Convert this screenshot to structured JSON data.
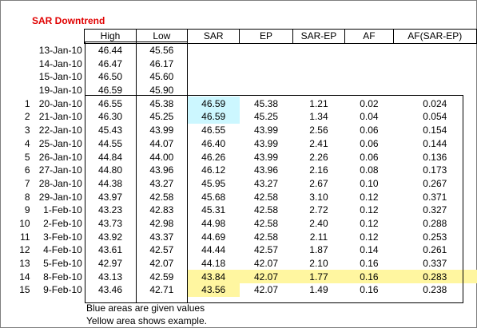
{
  "title": "SAR Downtrend",
  "headers": [
    "High",
    "Low",
    "SAR",
    "EP",
    "SAR-EP",
    "AF",
    "AF(SAR-EP)"
  ],
  "pre_rows": [
    {
      "date": "13-Jan-10",
      "high": "46.44",
      "low": "45.56"
    },
    {
      "date": "14-Jan-10",
      "high": "46.47",
      "low": "46.17"
    },
    {
      "date": "15-Jan-10",
      "high": "46.50",
      "low": "45.60"
    },
    {
      "date": "19-Jan-10",
      "high": "46.59",
      "low": "45.90"
    }
  ],
  "rows": [
    {
      "n": "1",
      "date": "20-Jan-10",
      "high": "46.55",
      "low": "45.38",
      "sar": "46.59",
      "ep": "45.38",
      "sep": "1.21",
      "af": "0.02",
      "afs": "0.024"
    },
    {
      "n": "2",
      "date": "21-Jan-10",
      "high": "46.30",
      "low": "45.25",
      "sar": "46.59",
      "ep": "45.25",
      "sep": "1.34",
      "af": "0.04",
      "afs": "0.054"
    },
    {
      "n": "3",
      "date": "22-Jan-10",
      "high": "45.43",
      "low": "43.99",
      "sar": "46.55",
      "ep": "43.99",
      "sep": "2.56",
      "af": "0.06",
      "afs": "0.154"
    },
    {
      "n": "4",
      "date": "25-Jan-10",
      "high": "44.55",
      "low": "44.07",
      "sar": "46.40",
      "ep": "43.99",
      "sep": "2.41",
      "af": "0.06",
      "afs": "0.144"
    },
    {
      "n": "5",
      "date": "26-Jan-10",
      "high": "44.84",
      "low": "44.00",
      "sar": "46.26",
      "ep": "43.99",
      "sep": "2.26",
      "af": "0.06",
      "afs": "0.136"
    },
    {
      "n": "6",
      "date": "27-Jan-10",
      "high": "44.80",
      "low": "43.96",
      "sar": "46.12",
      "ep": "43.96",
      "sep": "2.16",
      "af": "0.08",
      "afs": "0.173"
    },
    {
      "n": "7",
      "date": "28-Jan-10",
      "high": "44.38",
      "low": "43.27",
      "sar": "45.95",
      "ep": "43.27",
      "sep": "2.67",
      "af": "0.10",
      "afs": "0.267"
    },
    {
      "n": "8",
      "date": "29-Jan-10",
      "high": "43.97",
      "low": "42.58",
      "sar": "45.68",
      "ep": "42.58",
      "sep": "3.10",
      "af": "0.12",
      "afs": "0.371"
    },
    {
      "n": "9",
      "date": "1-Feb-10",
      "high": "43.23",
      "low": "42.83",
      "sar": "45.31",
      "ep": "42.58",
      "sep": "2.72",
      "af": "0.12",
      "afs": "0.327"
    },
    {
      "n": "10",
      "date": "2-Feb-10",
      "high": "43.73",
      "low": "42.98",
      "sar": "44.98",
      "ep": "42.58",
      "sep": "2.40",
      "af": "0.12",
      "afs": "0.288"
    },
    {
      "n": "11",
      "date": "3-Feb-10",
      "high": "43.92",
      "low": "43.37",
      "sar": "44.69",
      "ep": "42.58",
      "sep": "2.11",
      "af": "0.12",
      "afs": "0.253"
    },
    {
      "n": "12",
      "date": "4-Feb-10",
      "high": "43.61",
      "low": "42.57",
      "sar": "44.44",
      "ep": "42.57",
      "sep": "1.87",
      "af": "0.14",
      "afs": "0.261"
    },
    {
      "n": "13",
      "date": "5-Feb-10",
      "high": "42.97",
      "low": "42.07",
      "sar": "44.18",
      "ep": "42.07",
      "sep": "2.10",
      "af": "0.16",
      "afs": "0.337"
    },
    {
      "n": "14",
      "date": "8-Feb-10",
      "high": "43.13",
      "low": "42.59",
      "sar": "43.84",
      "ep": "42.07",
      "sep": "1.77",
      "af": "0.16",
      "afs": "0.283"
    },
    {
      "n": "15",
      "date": "9-Feb-10",
      "high": "43.46",
      "low": "42.71",
      "sar": "43.56",
      "ep": "42.07",
      "sep": "1.49",
      "af": "0.16",
      "afs": "0.238"
    }
  ],
  "notes": {
    "blue": "Blue areas are given values",
    "yellow": "Yellow area shows example."
  },
  "highlight_colors": {
    "blue": "#ccf7ff",
    "yellow": "#fff6a0",
    "title": "#e00000"
  }
}
